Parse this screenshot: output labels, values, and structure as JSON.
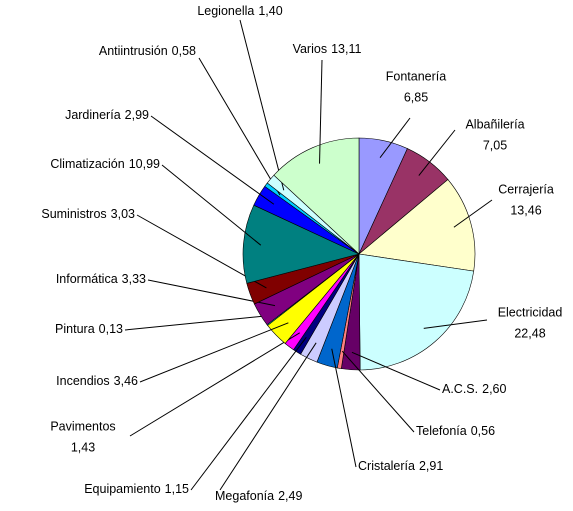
{
  "chart_data": {
    "type": "pie",
    "categories": [
      "Fontanería",
      "Albañilería",
      "Cerrajería",
      "Electricidad",
      "A.C.S.",
      "Telefonía",
      "Cristalería",
      "Megafonía",
      "Equipamiento",
      "Pavimentos",
      "Incendios",
      "Pintura",
      "Informática",
      "Suministros",
      "Climatización",
      "Jardinería",
      "Antiintrusión",
      "Legionella",
      "Varios"
    ],
    "values": [
      6.85,
      7.05,
      13.46,
      22.48,
      2.6,
      0.56,
      2.91,
      2.49,
      1.15,
      1.43,
      3.46,
      0.13,
      3.33,
      3.03,
      10.99,
      2.99,
      0.58,
      1.4,
      13.11
    ],
    "value_labels": [
      "6,85",
      "7,05",
      "13,46",
      "22,48",
      "2,60",
      "0,56",
      "2,91",
      "2,49",
      "1,15",
      "1,43",
      "3,46",
      "0,13",
      "3,33",
      "3,03",
      "10,99",
      "2,99",
      "0,58",
      "1,40",
      "13,11"
    ],
    "colors": [
      "#9999ff",
      "#993366",
      "#ffffcc",
      "#ccffff",
      "#660066",
      "#ff8080",
      "#0066cc",
      "#ccccff",
      "#000080",
      "#ff00ff",
      "#ffff00",
      "#00ffff",
      "#800080",
      "#800000",
      "#008080",
      "#0000ff",
      "#00ccff",
      "#ccffff",
      "#ccffcc"
    ]
  }
}
